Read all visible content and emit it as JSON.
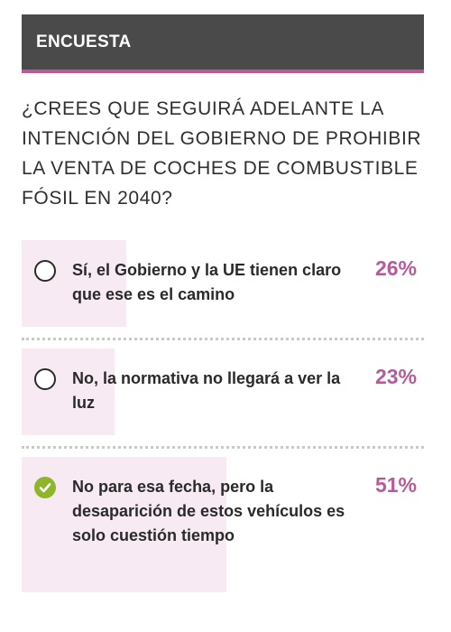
{
  "header": {
    "title": "ENCUESTA"
  },
  "question": "¿CREES QUE SEGUIRÁ ADELANTE LA INTENCIÓN DEL GOBIERNO DE PROHIBIR LA VENTA DE COCHES DE COMBUSTIBLE FÓSIL EN 2040?",
  "colors": {
    "accent": "#b85a9a",
    "header_bg": "#4a4a4a",
    "fill": "#f7eaf3",
    "check": "#8fb62a"
  },
  "options": [
    {
      "label": "Sí, el Gobierno y la UE tienen claro que ese es el camino",
      "percent": "26%",
      "value": 26,
      "selected": false,
      "icon": "radio-empty-icon"
    },
    {
      "label": "No, la normativa no llegará a ver la luz",
      "percent": "23%",
      "value": 23,
      "selected": false,
      "icon": "radio-empty-icon"
    },
    {
      "label": "No para esa fecha, pero la desaparición de estos vehículos es solo cuestión tiempo",
      "percent": "51%",
      "value": 51,
      "selected": true,
      "icon": "check-circle-icon"
    }
  ]
}
